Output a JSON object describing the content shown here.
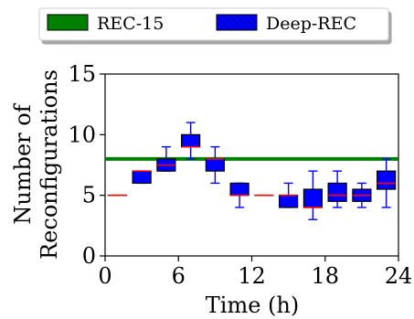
{
  "chart_data": {
    "type": "box",
    "title": "",
    "xlabel": "Time (h)",
    "ylabel": [
      "Number of",
      "Reconfigurations"
    ],
    "xlim": [
      0,
      24
    ],
    "ylim": [
      0,
      15
    ],
    "xticks": [
      0,
      6,
      12,
      18,
      24
    ],
    "yticks": [
      0,
      5,
      10,
      15
    ],
    "grid": false,
    "legend": {
      "placement": "top-center-outside",
      "entries": [
        {
          "label": "REC-15",
          "style": "solid",
          "color": "#008000"
        },
        {
          "label": "Deep-REC",
          "style": "hatched",
          "color": "#0000ff"
        }
      ]
    },
    "reference_line": {
      "name": "REC-15",
      "y": 8,
      "color": "#008000"
    },
    "series": [
      {
        "name": "Deep-REC",
        "box_color": "#0000ff",
        "median_color": "#ff0000",
        "boxes": [
          {
            "x": 1,
            "whisker_low": 5,
            "q1": 5,
            "median": 5,
            "q3": 5,
            "whisker_high": 5
          },
          {
            "x": 3,
            "whisker_low": 6,
            "q1": 6,
            "median": 7,
            "q3": 7,
            "whisker_high": 7
          },
          {
            "x": 5,
            "whisker_low": 7,
            "q1": 7,
            "median": 7.5,
            "q3": 8,
            "whisker_high": 9
          },
          {
            "x": 7,
            "whisker_low": 8,
            "q1": 9,
            "median": 9,
            "q3": 10,
            "whisker_high": 11
          },
          {
            "x": 9,
            "whisker_low": 6,
            "q1": 7,
            "median": 8,
            "q3": 8,
            "whisker_high": 9
          },
          {
            "x": 11,
            "whisker_low": 4,
            "q1": 5,
            "median": 5,
            "q3": 6,
            "whisker_high": 6
          },
          {
            "x": 13,
            "whisker_low": 5,
            "q1": 5,
            "median": 5,
            "q3": 5,
            "whisker_high": 5
          },
          {
            "x": 15,
            "whisker_low": 4,
            "q1": 4,
            "median": 5,
            "q3": 5,
            "whisker_high": 6
          },
          {
            "x": 17,
            "whisker_low": 3,
            "q1": 4,
            "median": 4,
            "q3": 5.5,
            "whisker_high": 7
          },
          {
            "x": 19,
            "whisker_low": 4,
            "q1": 4.5,
            "median": 5,
            "q3": 6,
            "whisker_high": 7
          },
          {
            "x": 21,
            "whisker_low": 4,
            "q1": 4.5,
            "median": 5,
            "q3": 5.5,
            "whisker_high": 6
          },
          {
            "x": 23,
            "whisker_low": 4,
            "q1": 5.5,
            "median": 6,
            "q3": 7,
            "whisker_high": 8
          }
        ]
      }
    ]
  }
}
